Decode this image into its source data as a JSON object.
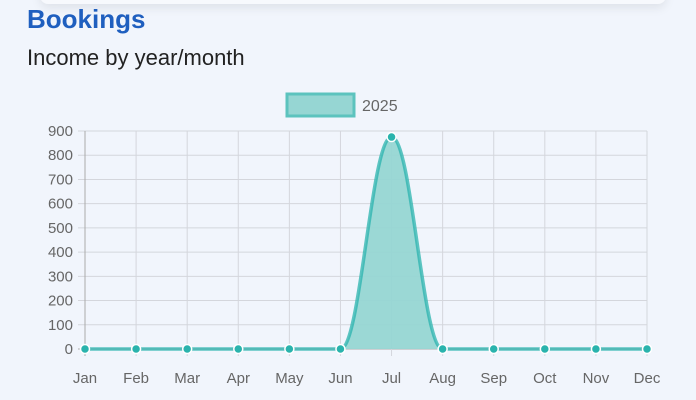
{
  "header": {
    "title": "Bookings",
    "subtitle": "Income by year/month"
  },
  "chart_data": {
    "type": "area",
    "categories": [
      "Jan",
      "Feb",
      "Mar",
      "Apr",
      "May",
      "Jun",
      "Jul",
      "Aug",
      "Sep",
      "Oct",
      "Nov",
      "Dec"
    ],
    "series": [
      {
        "name": "2025",
        "values": [
          0,
          0,
          0,
          0,
          0,
          0,
          875,
          0,
          0,
          0,
          0,
          0
        ],
        "color": "#2ab3ad",
        "fill": "#96d6d3"
      }
    ],
    "yticks": [
      0,
      100,
      200,
      300,
      400,
      500,
      600,
      700,
      800,
      900
    ],
    "ylim": [
      0,
      900
    ],
    "grid": true,
    "legend": "top"
  }
}
